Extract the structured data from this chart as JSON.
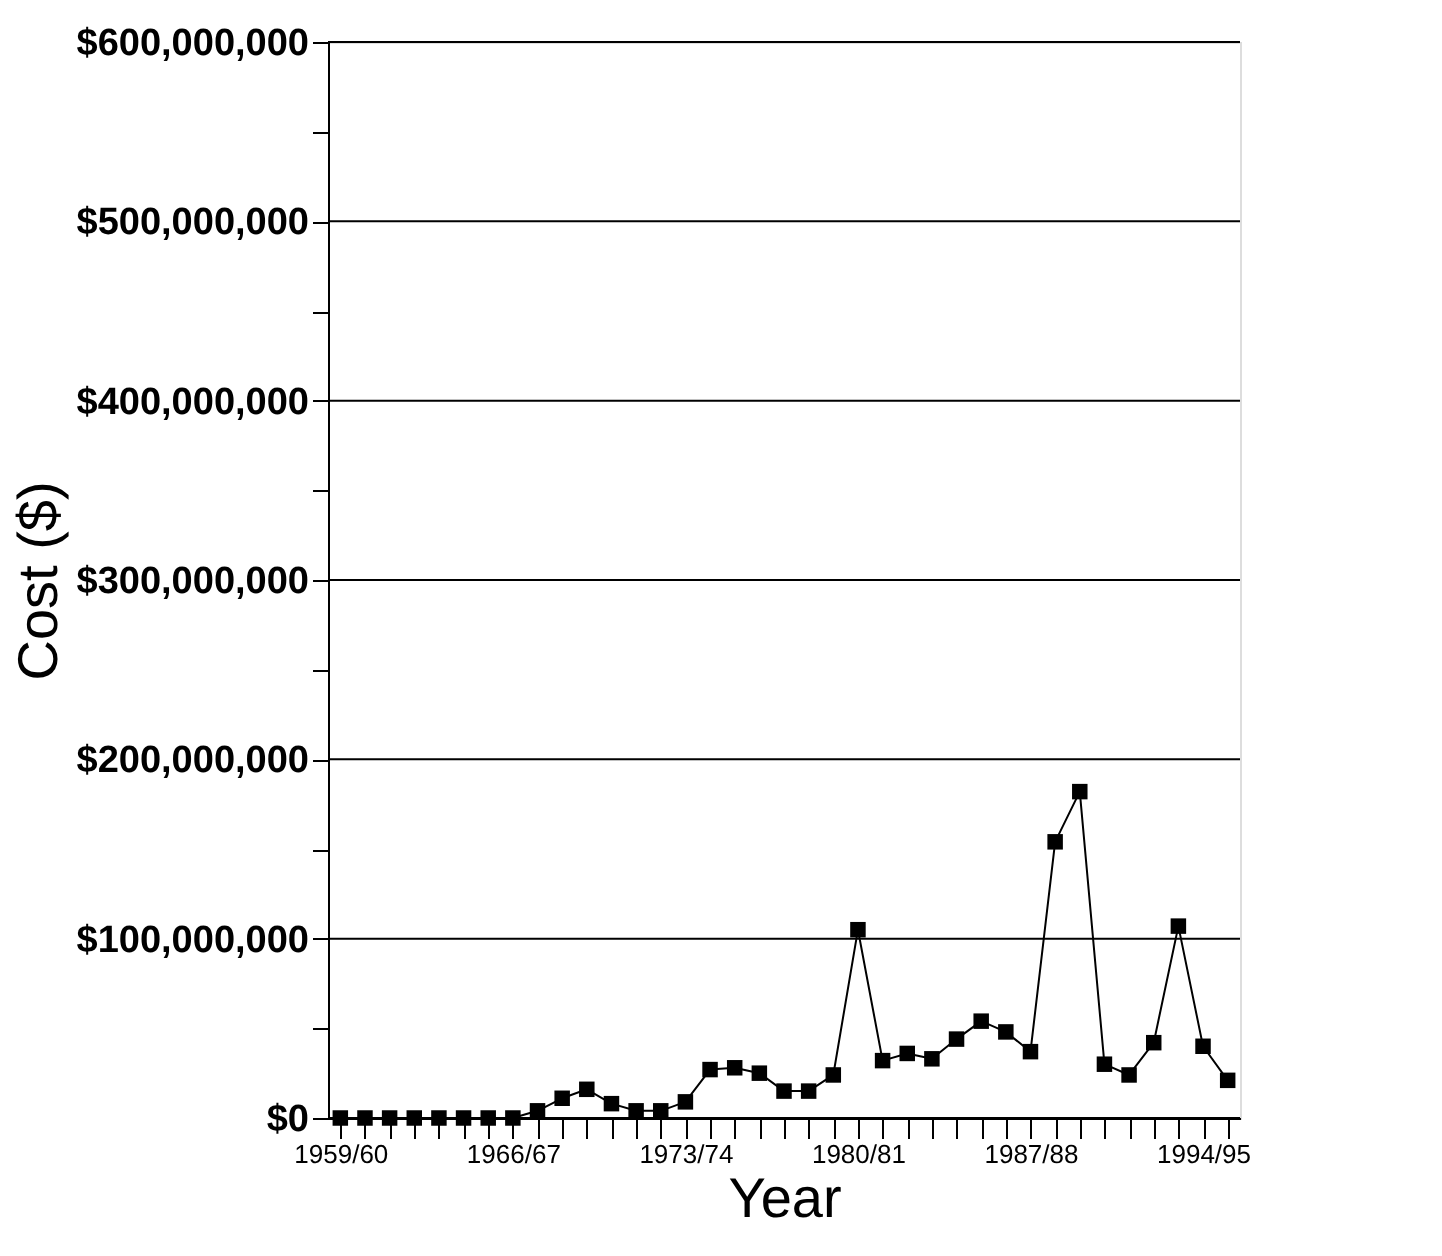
{
  "chart_data": {
    "type": "line",
    "xlabel": "Year",
    "ylabel": "Cost ($)",
    "categories": [
      "1959/60",
      null,
      null,
      null,
      null,
      null,
      null,
      "1966/67",
      null,
      null,
      null,
      null,
      null,
      null,
      "1973/74",
      null,
      null,
      null,
      null,
      null,
      null,
      "1980/81",
      null,
      null,
      null,
      null,
      null,
      null,
      "1987/88",
      null,
      null,
      null,
      null,
      null,
      null,
      "1994/95",
      null
    ],
    "series": [
      {
        "color": "#000000",
        "values": [
          0,
          0,
          0,
          0,
          0,
          0,
          0,
          0,
          4000000,
          11000000,
          16000000,
          8000000,
          4000000,
          4000000,
          9000000,
          27000000,
          28000000,
          25000000,
          15000000,
          15000000,
          24000000,
          105000000,
          32000000,
          36000000,
          33000000,
          44000000,
          54000000,
          48000000,
          37000000,
          154000000,
          182000000,
          30000000,
          24000000,
          42000000,
          107000000,
          40000000,
          21000000
        ]
      }
    ],
    "ylim": [
      0,
      600000000
    ],
    "yticks": [
      {
        "value": 0,
        "label": "$0"
      },
      {
        "value": 50000000,
        "label": null
      },
      {
        "value": 100000000,
        "label": "$100,000,000"
      },
      {
        "value": 150000000,
        "label": null
      },
      {
        "value": 200000000,
        "label": "$200,000,000"
      },
      {
        "value": 250000000,
        "label": null
      },
      {
        "value": 300000000,
        "label": "$300,000,000"
      },
      {
        "value": 350000000,
        "label": null
      },
      {
        "value": 400000000,
        "label": "$400,000,000"
      },
      {
        "value": 450000000,
        "label": null
      },
      {
        "value": 500000000,
        "label": "$500,000,000"
      },
      {
        "value": 550000000,
        "label": null
      },
      {
        "value": 600000000,
        "label": "$600,000,000"
      }
    ],
    "grid": "y",
    "marker": "square",
    "line_style": "solid"
  }
}
